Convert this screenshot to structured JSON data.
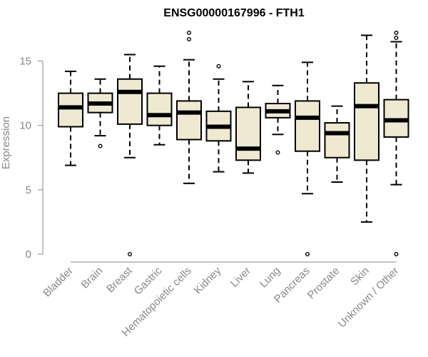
{
  "chart_data": {
    "type": "box",
    "title": "ENSG00000167996 - FTH1",
    "xlabel": "",
    "ylabel": "Expression",
    "ylim": [
      0,
      17.5
    ],
    "yticks": [
      0,
      5,
      10,
      15
    ],
    "grid": false,
    "box_fill": "#efe9d2",
    "categories": [
      "Bladder",
      "Brain",
      "Breast",
      "Gastric",
      "Hematopoietic cells",
      "Kidney",
      "Liver",
      "Lung",
      "Pancreas",
      "Prostate",
      "Skin",
      "Unknown / Other"
    ],
    "boxes": [
      {
        "category": "Bladder",
        "whisker_low": 6.9,
        "q1": 9.9,
        "median": 11.4,
        "q3": 12.5,
        "whisker_high": 14.2,
        "outliers": []
      },
      {
        "category": "Brain",
        "whisker_low": 9.2,
        "q1": 11.0,
        "median": 11.7,
        "q3": 12.5,
        "whisker_high": 13.6,
        "outliers": [
          8.4
        ]
      },
      {
        "category": "Breast",
        "whisker_low": 7.5,
        "q1": 10.1,
        "median": 12.6,
        "q3": 13.6,
        "whisker_high": 15.5,
        "outliers": [
          0.0
        ]
      },
      {
        "category": "Gastric",
        "whisker_low": 8.5,
        "q1": 10.0,
        "median": 10.8,
        "q3": 12.5,
        "whisker_high": 14.6,
        "outliers": []
      },
      {
        "category": "Hematopoietic cells",
        "whisker_low": 5.5,
        "q1": 8.9,
        "median": 11.0,
        "q3": 11.9,
        "whisker_high": 15.1,
        "outliers": [
          16.7,
          17.2
        ]
      },
      {
        "category": "Kidney",
        "whisker_low": 6.4,
        "q1": 8.8,
        "median": 9.9,
        "q3": 11.1,
        "whisker_high": 13.6,
        "outliers": [
          14.6
        ]
      },
      {
        "category": "Liver",
        "whisker_low": 6.3,
        "q1": 7.3,
        "median": 8.2,
        "q3": 11.4,
        "whisker_high": 13.4,
        "outliers": []
      },
      {
        "category": "Lung",
        "whisker_low": 9.3,
        "q1": 10.6,
        "median": 11.1,
        "q3": 11.7,
        "whisker_high": 13.1,
        "outliers": [
          7.9
        ]
      },
      {
        "category": "Pancreas",
        "whisker_low": 4.7,
        "q1": 8.0,
        "median": 10.6,
        "q3": 11.9,
        "whisker_high": 14.9,
        "outliers": [
          0.0
        ]
      },
      {
        "category": "Prostate",
        "whisker_low": 5.6,
        "q1": 7.5,
        "median": 9.4,
        "q3": 10.2,
        "whisker_high": 11.5,
        "outliers": []
      },
      {
        "category": "Skin",
        "whisker_low": 2.5,
        "q1": 7.3,
        "median": 11.5,
        "q3": 13.3,
        "whisker_high": 17.0,
        "outliers": []
      },
      {
        "category": "Unknown / Other",
        "whisker_low": 5.4,
        "q1": 9.1,
        "median": 10.4,
        "q3": 12.0,
        "whisker_high": 16.5,
        "outliers": [
          0.0,
          16.8,
          17.2
        ]
      }
    ]
  }
}
